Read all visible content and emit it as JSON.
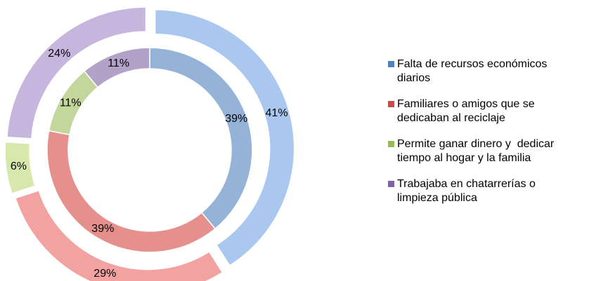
{
  "chart_data": {
    "type": "doughnut",
    "categories": [
      "Falta de recursos económicos diarios",
      "Familiares o amigos que se dedicaban al reciclaje",
      "Permite ganar dinero y  dedicar tiempo al hogar y la familia",
      "Trabajaba en chatarrerías o limpieza pública"
    ],
    "legend_colors": [
      "#4f81bd",
      "#c0504d",
      "#9bbb59",
      "#8064a2"
    ],
    "legend": "right",
    "series": [
      {
        "values": [
          39,
          39,
          11,
          11
        ],
        "value_labels": [
          "39%",
          "39%",
          "11%",
          "11%"
        ],
        "colors": [
          "#95b3d7",
          "#e6908e",
          "#c3d69b",
          "#b3a2c7"
        ]
      },
      {
        "values": [
          41,
          29,
          6,
          24
        ],
        "value_labels": [
          "41%",
          "29%",
          "6%",
          "24%"
        ],
        "colors": [
          "#a9c7ef",
          "#f2a3a1",
          "#d7e8ad",
          "#c6b5dc"
        ]
      }
    ]
  }
}
